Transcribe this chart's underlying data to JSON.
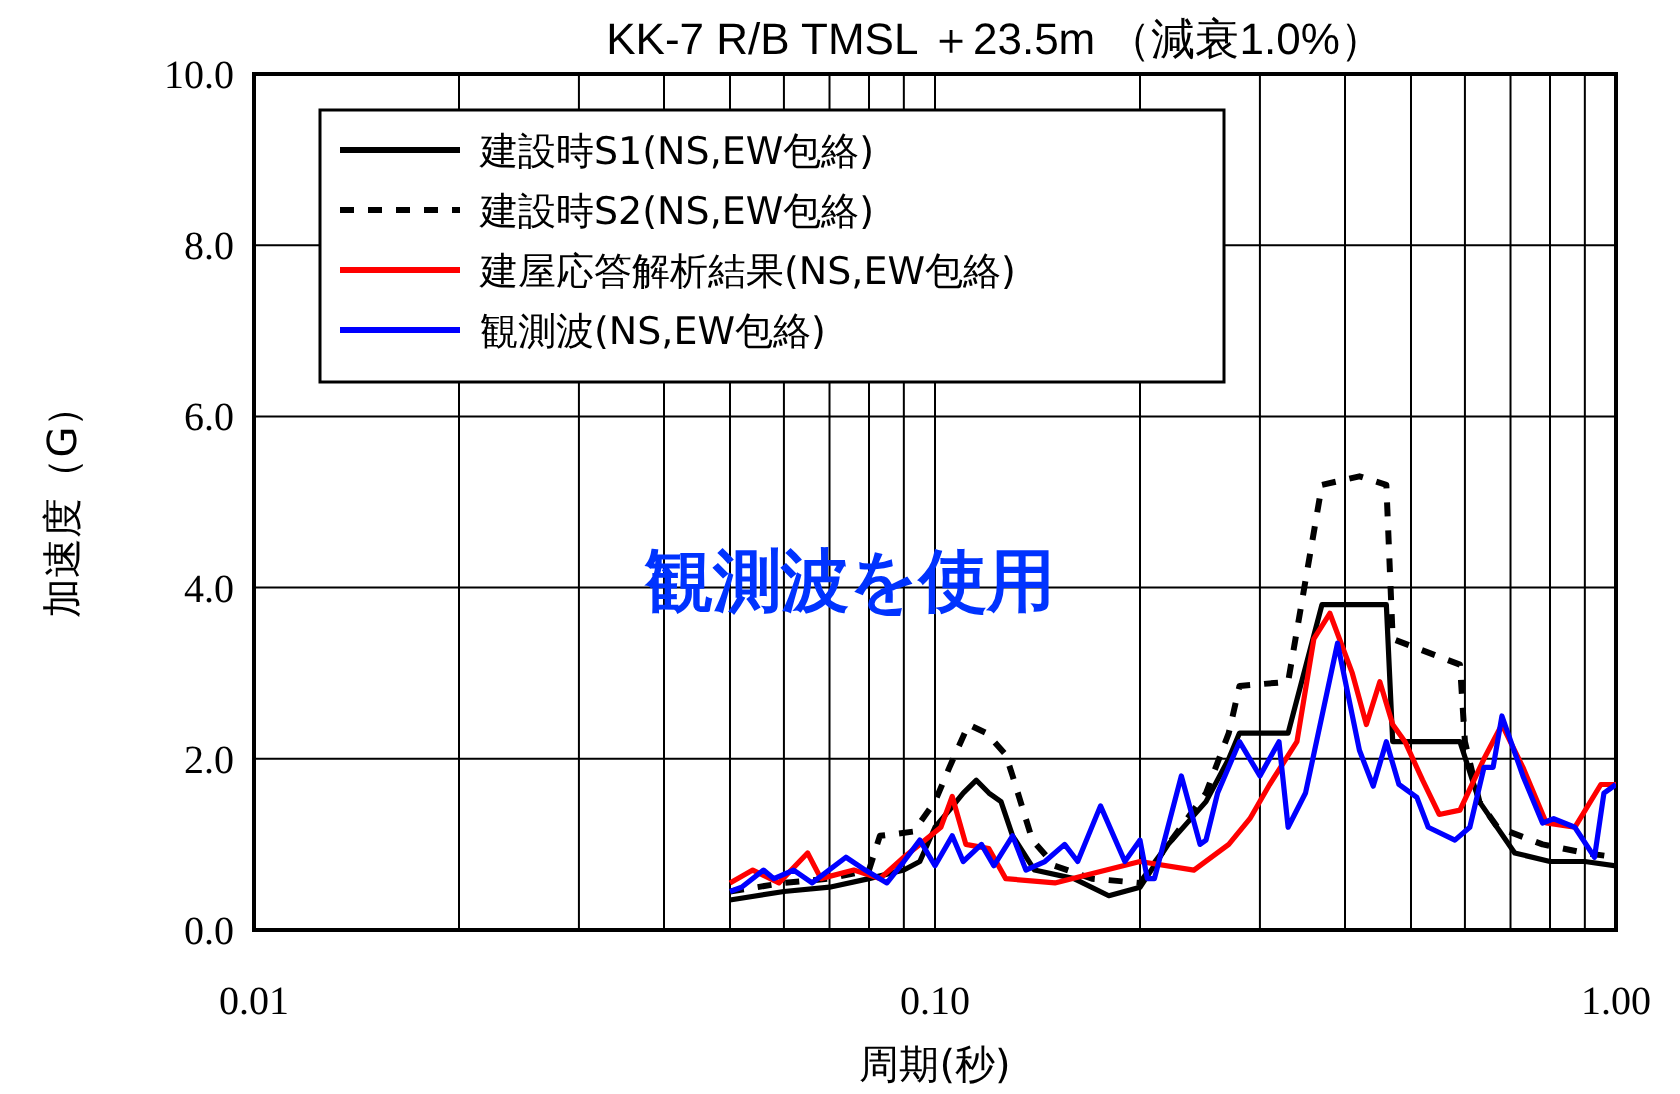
{
  "chart_data": {
    "type": "line",
    "title": "KK-7 R/B TMSL ＋23.5m （減衰1.0%）",
    "xlabel": "周期(秒)",
    "ylabel": "加速度（G）",
    "log": "x",
    "xlim": [
      0.01,
      1
    ],
    "ylim": [
      0,
      10
    ],
    "xticks": [
      {
        "value": 0.01,
        "label": "0.01"
      },
      {
        "value": 0.02,
        "label": null
      },
      {
        "value": 0.03,
        "label": null
      },
      {
        "value": 0.04,
        "label": null
      },
      {
        "value": 0.05,
        "label": null
      },
      {
        "value": 0.06,
        "label": null
      },
      {
        "value": 0.07,
        "label": null
      },
      {
        "value": 0.08,
        "label": null
      },
      {
        "value": 0.09,
        "label": null
      },
      {
        "value": 0.1,
        "label": "0.10"
      },
      {
        "value": 0.2,
        "label": null
      },
      {
        "value": 0.3,
        "label": null
      },
      {
        "value": 0.4,
        "label": null
      },
      {
        "value": 0.5,
        "label": null
      },
      {
        "value": 0.6,
        "label": null
      },
      {
        "value": 0.7,
        "label": null
      },
      {
        "value": 0.8,
        "label": null
      },
      {
        "value": 0.9,
        "label": null
      },
      {
        "value": 1,
        "label": "1.00"
      }
    ],
    "yticks": [
      {
        "value": 0,
        "label": "0.0"
      },
      {
        "value": 2,
        "label": "2.0"
      },
      {
        "value": 4,
        "label": "4.0"
      },
      {
        "value": 6,
        "label": "6.0"
      },
      {
        "value": 8,
        "label": "8.0"
      },
      {
        "value": 10,
        "label": "10.0"
      }
    ],
    "grid": true,
    "legend": "top left",
    "annotations": [
      "観測波を使用"
    ],
    "series": [
      {
        "name": "建設時S1(NS,EW包絡)",
        "color": "#000000",
        "x": [
          0.05,
          0.06,
          0.07,
          0.08,
          0.09,
          0.095,
          0.1,
          0.105,
          0.11,
          0.115,
          0.12,
          0.125,
          0.13,
          0.14,
          0.16,
          0.18,
          0.2,
          0.22,
          0.25,
          0.27,
          0.28,
          0.33,
          0.37,
          0.46,
          0.47,
          0.59,
          0.63,
          0.71,
          0.8,
          0.9,
          1.0
        ],
        "values": [
          0.35,
          0.45,
          0.5,
          0.6,
          0.7,
          0.8,
          1.2,
          1.4,
          1.6,
          1.75,
          1.6,
          1.5,
          1.1,
          0.7,
          0.6,
          0.4,
          0.5,
          1.0,
          1.5,
          2.0,
          2.3,
          2.3,
          3.8,
          3.8,
          2.2,
          2.2,
          1.5,
          0.9,
          0.8,
          0.8,
          0.75
        ]
      },
      {
        "name": "建設時S2(NS,EW包絡)",
        "color": "#000000",
        "line_style": "dashed",
        "x": [
          0.05,
          0.06,
          0.07,
          0.08,
          0.083,
          0.093,
          0.1,
          0.105,
          0.112,
          0.119,
          0.127,
          0.13,
          0.139,
          0.15,
          0.17,
          0.2,
          0.25,
          0.27,
          0.28,
          0.33,
          0.37,
          0.42,
          0.46,
          0.47,
          0.59,
          0.6,
          0.63,
          0.67,
          0.78,
          0.9,
          1.0
        ],
        "values": [
          0.45,
          0.55,
          0.6,
          0.7,
          1.1,
          1.15,
          1.5,
          1.9,
          2.4,
          2.3,
          2.05,
          1.8,
          1.05,
          0.75,
          0.6,
          0.55,
          1.6,
          2.3,
          2.85,
          2.9,
          5.2,
          5.3,
          5.2,
          3.4,
          3.1,
          2.2,
          1.5,
          1.2,
          1.0,
          0.9,
          0.85
        ]
      },
      {
        "name": "建屋応答解析結果(NS,EW包絡)",
        "color": "#ff0000",
        "x": [
          0.05,
          0.054,
          0.059,
          0.065,
          0.068,
          0.076,
          0.083,
          0.09,
          0.095,
          0.102,
          0.106,
          0.111,
          0.12,
          0.127,
          0.15,
          0.2,
          0.24,
          0.27,
          0.29,
          0.31,
          0.34,
          0.36,
          0.38,
          0.41,
          0.43,
          0.45,
          0.47,
          0.49,
          0.52,
          0.55,
          0.59,
          0.64,
          0.68,
          0.73,
          0.79,
          0.87,
          0.95,
          1.0
        ],
        "values": [
          0.55,
          0.7,
          0.55,
          0.9,
          0.6,
          0.7,
          0.6,
          0.85,
          1.0,
          1.2,
          1.56,
          1.0,
          0.95,
          0.6,
          0.55,
          0.8,
          0.7,
          1.0,
          1.3,
          1.7,
          2.2,
          3.4,
          3.7,
          3.0,
          2.4,
          2.9,
          2.4,
          2.2,
          1.75,
          1.35,
          1.4,
          2.0,
          2.4,
          1.9,
          1.25,
          1.2,
          1.7,
          1.7
        ]
      },
      {
        "name": "観測波(NS,EW包絡)",
        "color": "#0000ff",
        "x": [
          0.05,
          0.052,
          0.056,
          0.058,
          0.062,
          0.066,
          0.074,
          0.079,
          0.085,
          0.09,
          0.095,
          0.1,
          0.106,
          0.11,
          0.117,
          0.122,
          0.13,
          0.136,
          0.145,
          0.155,
          0.162,
          0.175,
          0.19,
          0.2,
          0.205,
          0.21,
          0.23,
          0.245,
          0.25,
          0.26,
          0.28,
          0.3,
          0.32,
          0.33,
          0.35,
          0.39,
          0.42,
          0.44,
          0.46,
          0.48,
          0.51,
          0.53,
          0.58,
          0.61,
          0.64,
          0.66,
          0.68,
          0.73,
          0.78,
          0.81,
          0.87,
          0.93,
          0.96,
          1.0
        ],
        "values": [
          0.45,
          0.5,
          0.7,
          0.6,
          0.7,
          0.55,
          0.85,
          0.7,
          0.55,
          0.8,
          1.05,
          0.75,
          1.1,
          0.8,
          1.0,
          0.75,
          1.1,
          0.7,
          0.8,
          1.0,
          0.8,
          1.45,
          0.8,
          1.05,
          0.6,
          0.6,
          1.8,
          1.0,
          1.05,
          1.6,
          2.2,
          1.8,
          2.2,
          1.2,
          1.6,
          3.35,
          2.1,
          1.68,
          2.2,
          1.7,
          1.55,
          1.2,
          1.05,
          1.2,
          1.9,
          1.9,
          2.5,
          1.8,
          1.25,
          1.3,
          1.2,
          0.85,
          1.6,
          1.7
        ]
      }
    ]
  }
}
